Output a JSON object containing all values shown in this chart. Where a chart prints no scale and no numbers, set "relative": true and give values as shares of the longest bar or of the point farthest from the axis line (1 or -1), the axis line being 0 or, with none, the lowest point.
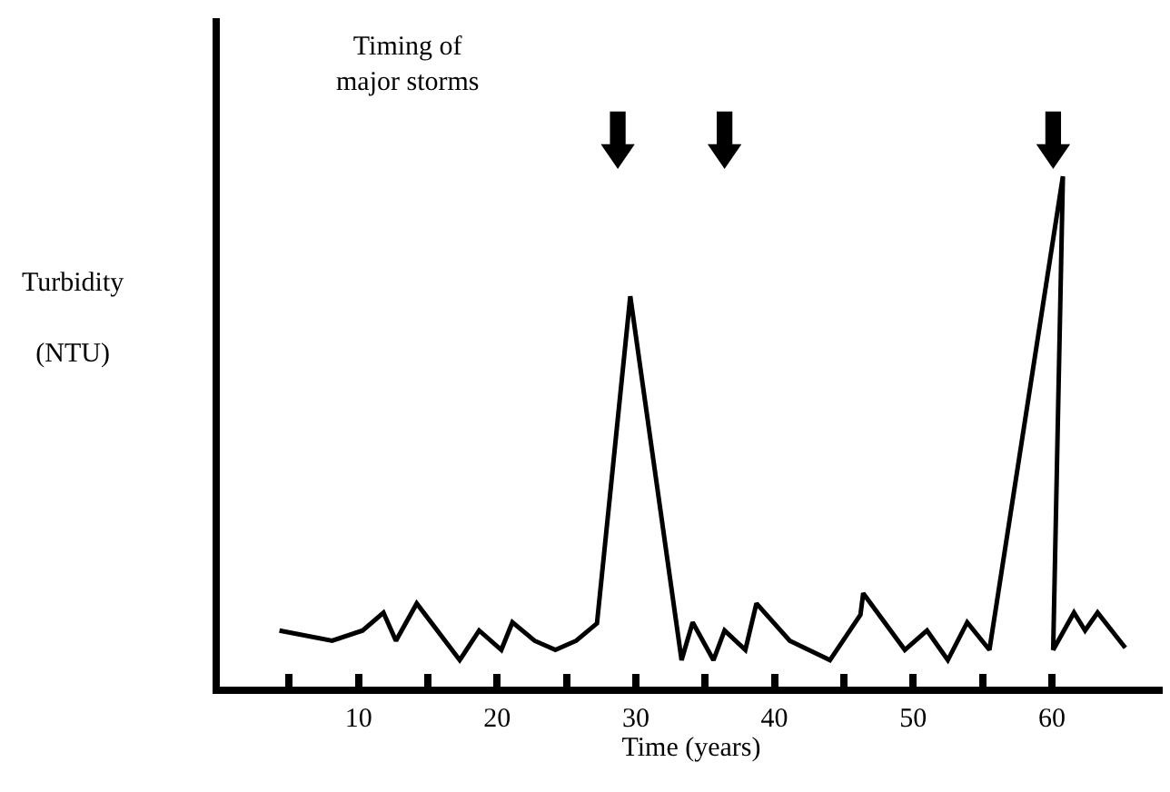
{
  "chart_data": {
    "type": "line",
    "relative": true,
    "xlabel": "Time (years)",
    "ylabel": "Turbidity\n(NTU)",
    "annotations": [
      "Timing of\nmajor storms"
    ],
    "xlim": [
      0,
      68
    ],
    "xticks": [
      {
        "value": 5,
        "label": null
      },
      10,
      {
        "value": 15,
        "label": null
      },
      20,
      {
        "value": 25,
        "label": null
      },
      30,
      {
        "value": 35,
        "label": null
      },
      40,
      {
        "value": 45,
        "label": null
      },
      50,
      {
        "value": 55,
        "label": null
      },
      60
    ],
    "marker": "none",
    "line_style": "solid",
    "series": [
      {
        "color": "#000000",
        "x": [
          4.3,
          8.1,
          10.3,
          11.8,
          12.7,
          14.2,
          17.3,
          18.7,
          20.3,
          21.1,
          22.7,
          24.2,
          25.7,
          27.2,
          29.6,
          33.3,
          34.1,
          35.6,
          36.4,
          37.9,
          38.7,
          41.1,
          44.0,
          46.2,
          46.4,
          49.4,
          51.0,
          52.5,
          53.9,
          55.5,
          60.8,
          60.1,
          61.6,
          62.4,
          63.3,
          65.3
        ],
        "values": [
          0.11,
          0.09,
          0.11,
          0.145,
          0.09,
          0.163,
          0.052,
          0.11,
          0.072,
          0.126,
          0.09,
          0.072,
          0.09,
          0.124,
          0.765,
          0.052,
          0.126,
          0.052,
          0.11,
          0.072,
          0.163,
          0.09,
          0.052,
          0.141,
          0.183,
          0.072,
          0.11,
          0.052,
          0.126,
          0.072,
          1,
          0.072,
          0.145,
          0.11,
          0.145,
          0.076
        ]
      }
    ]
  }
}
